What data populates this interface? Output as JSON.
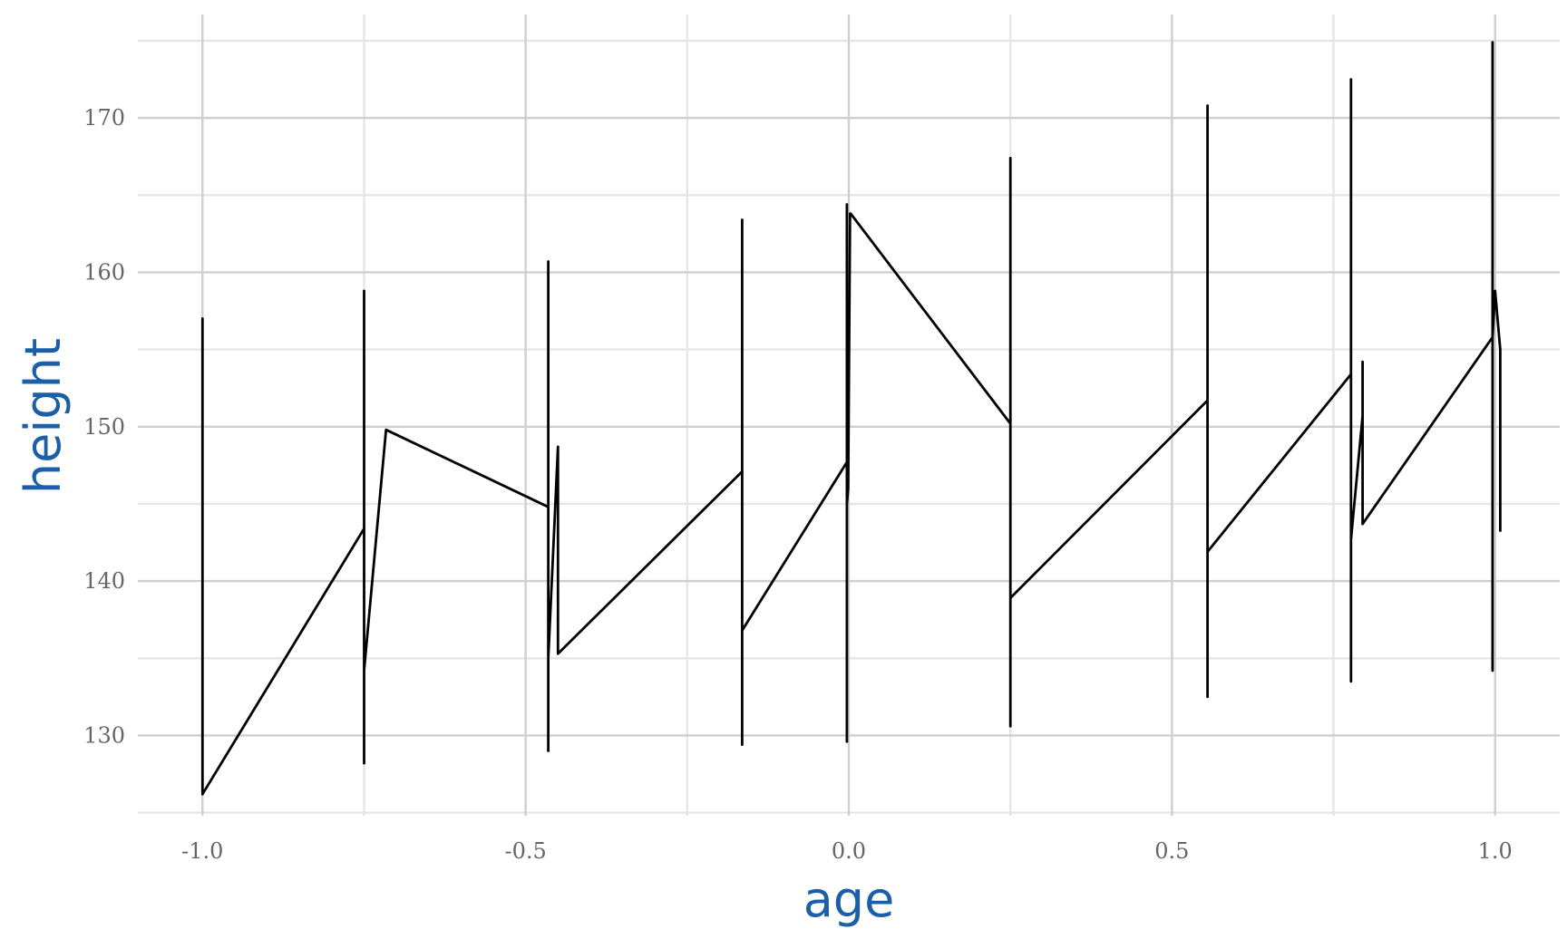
{
  "chart_data": {
    "type": "line",
    "title": "",
    "xlabel": "age",
    "ylabel": "height",
    "xlim": [
      -1.1,
      1.1
    ],
    "ylim": [
      124.8,
      176.7
    ],
    "x_ticks": [
      -1.0,
      -0.5,
      0.0,
      0.5,
      1.0
    ],
    "x_tick_labels": [
      "-1.0",
      "-0.5",
      "0.0",
      "0.5",
      "1.0"
    ],
    "x_minor_ticks": [
      -0.75,
      -0.25,
      0.25,
      0.75
    ],
    "y_ticks": [
      130,
      140,
      150,
      160,
      170
    ],
    "y_tick_labels": [
      "130",
      "140",
      "150",
      "160",
      "170"
    ],
    "y_minor_ticks": [
      125,
      135,
      145,
      155,
      165,
      175
    ],
    "grid": true,
    "legend": "none",
    "line_color": "#000000",
    "axis_title_color": "#1a5fa8",
    "series": [
      {
        "x": [
          -1.0,
          -1.0,
          -1.0,
          -0.75,
          -0.75,
          -0.75,
          -0.75,
          -0.716,
          -0.465,
          -0.465,
          -0.465,
          -0.465,
          -0.45,
          -0.45,
          -0.45,
          -0.165,
          -0.165,
          -0.165,
          -0.165,
          -0.003,
          -0.003,
          -0.003,
          -0.003,
          -0.001,
          0.002,
          0.002,
          0.003,
          0.25,
          0.25,
          0.25,
          0.25,
          0.555,
          0.555,
          0.555,
          0.555,
          0.777,
          0.777,
          0.777,
          0.777,
          0.795,
          0.795,
          0.795,
          0.795,
          0.996,
          0.996,
          0.996,
          0.996,
          1.0,
          1.008,
          1.008
        ],
        "y": [
          132.2,
          157.0,
          126.2,
          143.4,
          158.8,
          128.2,
          134.2,
          149.8,
          144.8,
          160.7,
          129.0,
          135.0,
          148.7,
          135.3,
          135.3,
          147.1,
          163.4,
          129.4,
          136.8,
          147.7,
          164.4,
          129.6,
          145.0,
          146.0,
          163.8,
          163.8,
          163.8,
          150.2,
          167.4,
          130.6,
          138.9,
          151.7,
          170.8,
          132.5,
          141.9,
          153.4,
          172.5,
          133.5,
          142.7,
          150.7,
          154.2,
          143.7,
          143.7,
          155.8,
          174.9,
          134.2,
          155.8,
          158.8,
          155.0,
          143.2
        ]
      }
    ]
  }
}
